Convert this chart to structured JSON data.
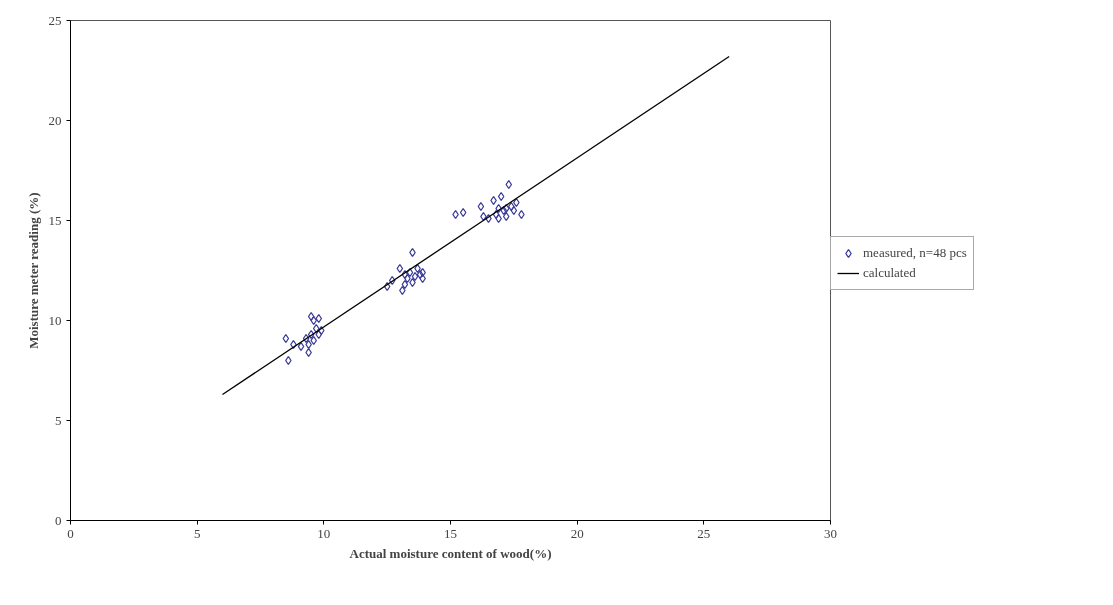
{
  "chart_data": {
    "type": "scatter",
    "xlabel": "Actual moisture content of wood(%)",
    "ylabel": "Moisture meter reading (%)",
    "xlim": [
      0,
      30
    ],
    "ylim": [
      0,
      25
    ],
    "xticks": [
      0,
      5,
      10,
      15,
      20,
      25,
      30
    ],
    "yticks": [
      0,
      5,
      10,
      15,
      20,
      25
    ],
    "grid": false,
    "legend": "right",
    "series": [
      {
        "name": "measured, n=48 pcs",
        "marker": "diamond",
        "color": "#3a3a9a",
        "x": [
          8.5,
          8.6,
          8.8,
          9.1,
          9.3,
          9.4,
          9.4,
          9.5,
          9.6,
          9.5,
          9.7,
          9.8,
          9.8,
          9.9,
          9.6,
          12.5,
          12.7,
          13.0,
          13.1,
          13.2,
          13.3,
          13.4,
          13.5,
          13.5,
          13.6,
          13.7,
          13.8,
          13.9,
          13.9,
          13.2,
          15.2,
          15.5,
          16.2,
          16.3,
          16.5,
          16.7,
          16.8,
          16.9,
          17.0,
          17.1,
          17.2,
          17.3,
          17.4,
          17.5,
          17.6,
          17.8,
          16.9,
          17.2
        ],
        "values": [
          9.1,
          8.0,
          8.8,
          8.7,
          9.1,
          8.4,
          8.8,
          10.2,
          10.0,
          9.3,
          9.6,
          10.1,
          9.3,
          9.5,
          9.0,
          11.7,
          12.0,
          12.6,
          11.5,
          11.8,
          12.1,
          12.4,
          13.4,
          11.9,
          12.2,
          12.6,
          12.3,
          12.4,
          12.1,
          12.3,
          15.3,
          15.4,
          15.7,
          15.2,
          15.1,
          16.0,
          15.3,
          15.1,
          16.2,
          15.5,
          15.6,
          16.8,
          15.7,
          15.5,
          15.9,
          15.3,
          15.6,
          15.2
        ]
      },
      {
        "name": "calculated",
        "type": "line",
        "color": "#000000",
        "x": [
          6,
          26
        ],
        "values": [
          6.3,
          23.2
        ]
      }
    ]
  }
}
